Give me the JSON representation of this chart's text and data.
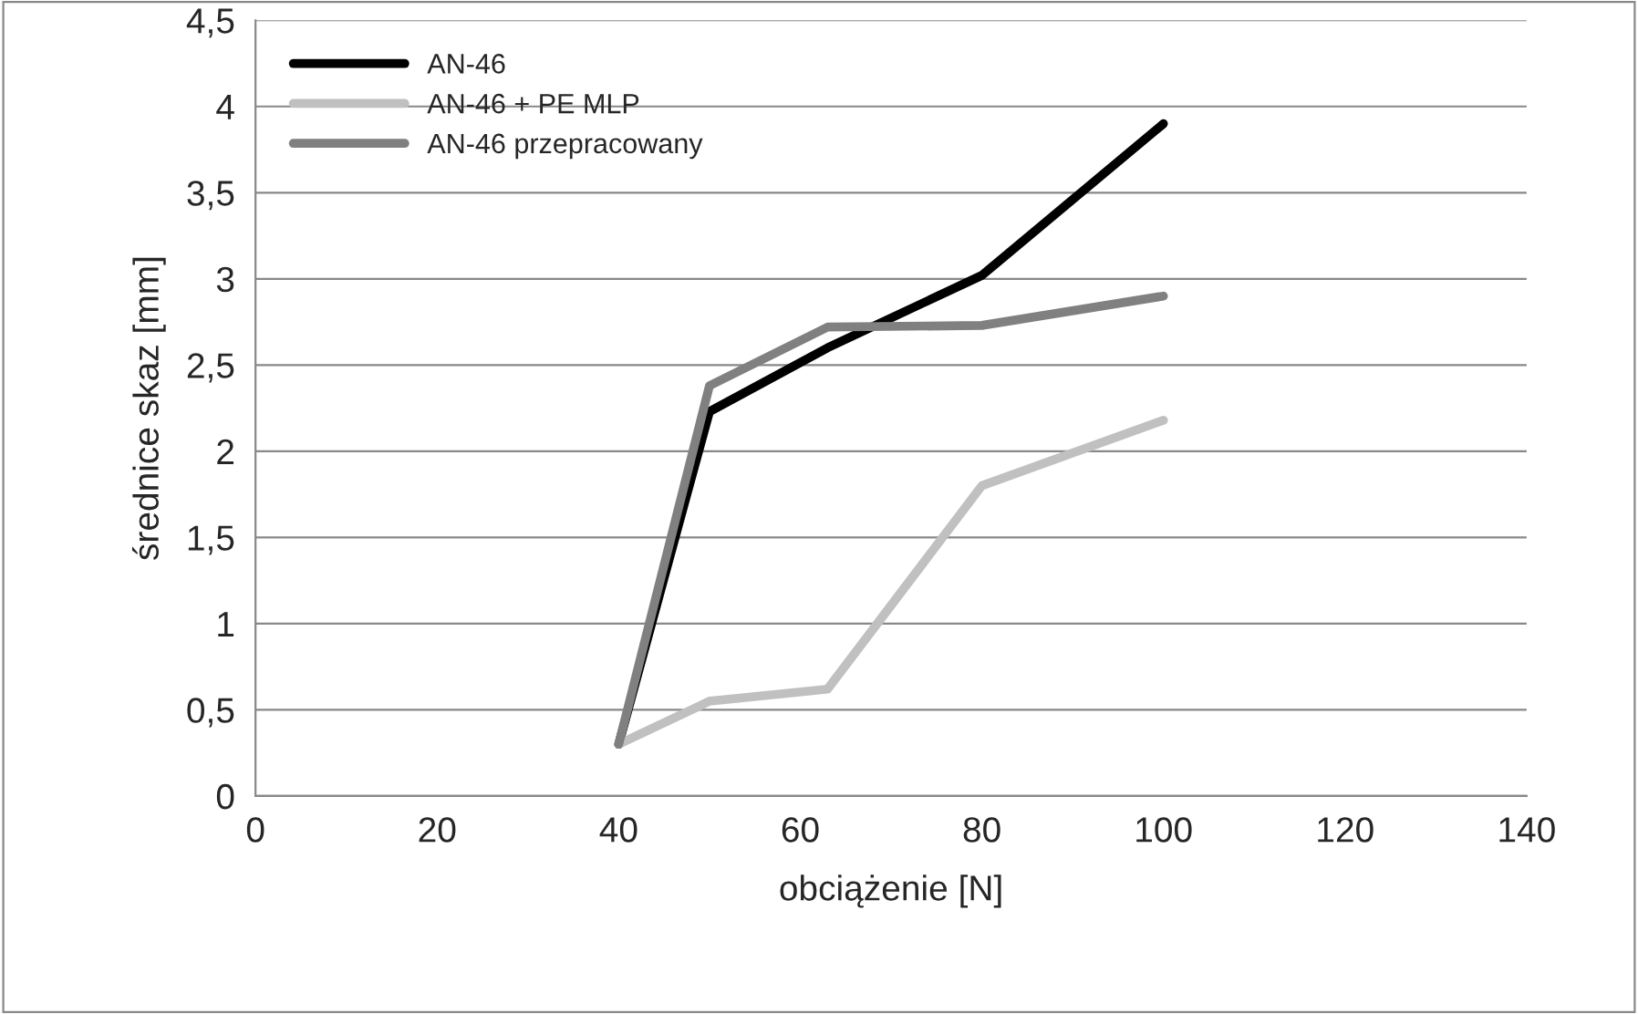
{
  "chart_data": {
    "type": "line",
    "xlabel": "obciążenie [N]",
    "ylabel": "średnice skaz [mm]",
    "x": [
      40,
      50,
      63,
      80,
      100
    ],
    "series": [
      {
        "name": "AN-46",
        "color": "#000000",
        "values": [
          0.3,
          2.23,
          2.6,
          3.02,
          3.9
        ]
      },
      {
        "name": "AN-46 + PE MLP",
        "color": "#c0c0c0",
        "values": [
          0.3,
          0.55,
          0.62,
          1.8,
          2.18
        ]
      },
      {
        "name": "AN-46 przepracowany",
        "color": "#808080",
        "values": [
          0.3,
          2.38,
          2.72,
          2.73,
          2.9
        ]
      }
    ],
    "xlim": [
      0,
      140
    ],
    "xticks": [
      0,
      20,
      40,
      60,
      80,
      100,
      120,
      140
    ],
    "ylim": [
      0,
      4.5
    ],
    "yticks": [
      0,
      {
        "value": 0.5,
        "label": "0,5"
      },
      1,
      {
        "value": 1.5,
        "label": "1,5"
      },
      2,
      {
        "value": 2.5,
        "label": "2,5"
      },
      3,
      {
        "value": 3.5,
        "label": "3,5"
      },
      4,
      {
        "value": 4.5,
        "label": "4,5"
      }
    ],
    "grid": "y",
    "legend": "top left",
    "marker": "none",
    "line_style": "solid"
  }
}
